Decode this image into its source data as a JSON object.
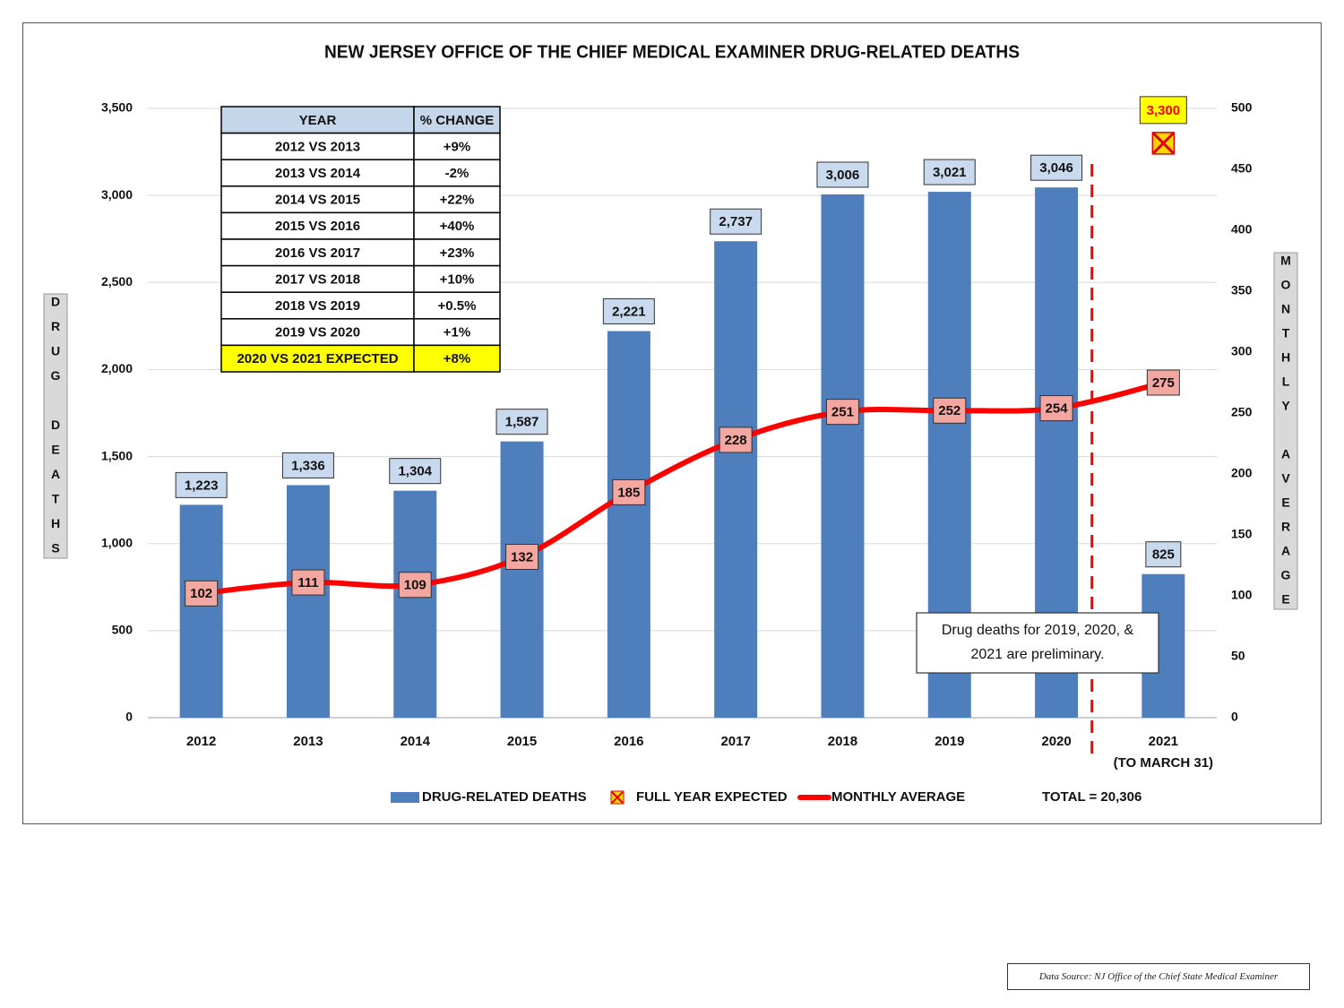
{
  "colors": {
    "bar": "#4f7ebc",
    "bar_label_bg": "#c9d9ee",
    "line": "#ff0000",
    "line_label_bg": "#f4a6a0",
    "expected_bg": "#ffff00",
    "expected_text": "#ff0000",
    "table_header_bg": "#c5d6ea",
    "grid": "#d9d9d9",
    "axis_title_bg": "#d9d9d9"
  },
  "chart_data": {
    "type": "bar",
    "title": "NEW JERSEY OFFICE OF THE CHIEF MEDICAL EXAMINER DRUG-RELATED DEATHS",
    "categories": [
      "2012",
      "2013",
      "2014",
      "2015",
      "2016",
      "2017",
      "2018",
      "2019",
      "2020",
      "2021"
    ],
    "category_sublabels": [
      "",
      "",
      "",
      "",
      "",
      "",
      "",
      "",
      "",
      "(TO MARCH 31)"
    ],
    "series": [
      {
        "name": "DRUG-RELATED DEATHS",
        "type": "bar",
        "axis": "left",
        "values": [
          1223,
          1336,
          1304,
          1587,
          2221,
          2737,
          3006,
          3021,
          3046,
          825
        ],
        "labels": [
          "1,223",
          "1,336",
          "1,304",
          "1,587",
          "2,221",
          "2,737",
          "3,006",
          "3,021",
          "3,046",
          "825"
        ]
      },
      {
        "name": "MONTHLY AVERAGE",
        "type": "line",
        "axis": "right",
        "values": [
          102,
          111,
          109,
          132,
          185,
          228,
          251,
          252,
          254,
          275
        ],
        "labels": [
          "102",
          "111",
          "109",
          "132",
          "185",
          "228",
          "251",
          "252",
          "254",
          "275"
        ]
      },
      {
        "name": "FULL YEAR EXPECTED",
        "type": "marker",
        "axis": "left",
        "category": "2021",
        "value": 3300,
        "label": "3,300"
      }
    ],
    "ylabel_left": "DRUG DEATHS",
    "ylabel_right": "MONTHLY AVERAGE",
    "ylim_left": [
      0,
      3500
    ],
    "ylim_right": [
      0,
      500
    ],
    "yticks_left": [
      "0",
      "500",
      "1,000",
      "1,500",
      "2,000",
      "2,500",
      "3,000",
      "3,500"
    ],
    "yticks_right": [
      "0",
      "50",
      "100",
      "150",
      "200",
      "250",
      "300",
      "350",
      "400",
      "450",
      "500"
    ],
    "grid": true,
    "legend_position": "bottom",
    "total_label": "TOTAL = 20,306",
    "annotation": "Drug deaths for 2019, 2020, & 2021 are preliminary.",
    "change_table": {
      "headers": [
        "YEAR",
        "% CHANGE"
      ],
      "rows": [
        [
          "2012 VS 2013",
          "+9%"
        ],
        [
          "2013 VS 2014",
          "-2%"
        ],
        [
          "2014 VS 2015",
          "+22%"
        ],
        [
          "2015 VS 2016",
          "+40%"
        ],
        [
          "2016 VS 2017",
          "+23%"
        ],
        [
          "2017 VS 2018",
          "+10%"
        ],
        [
          "2018 VS 2019",
          "+0.5%"
        ],
        [
          "2019 VS 2020",
          "+1%"
        ],
        [
          "2020 VS 2021 EXPECTED",
          "+8%"
        ]
      ],
      "highlighted_row": 8
    }
  },
  "source": "Data Source: NJ Office of the Chief State Medical Examiner"
}
